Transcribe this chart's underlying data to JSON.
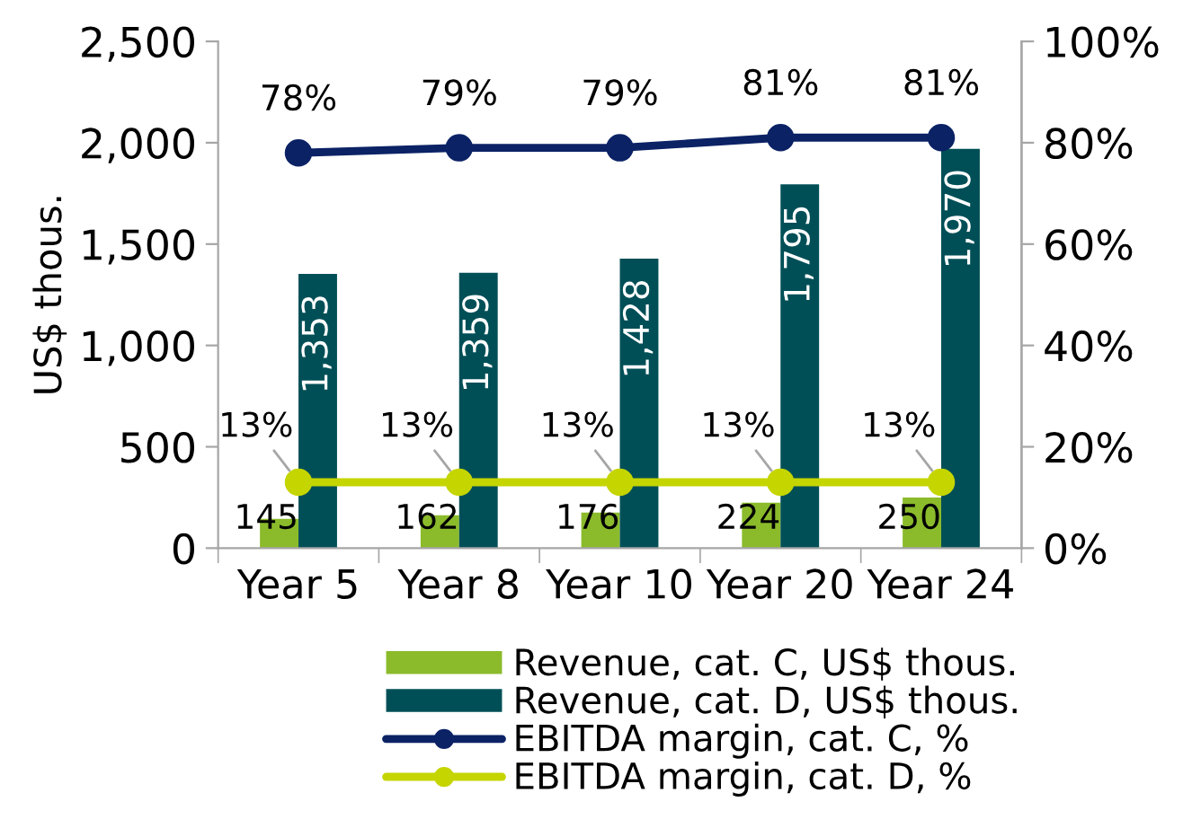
{
  "chart_data": {
    "type": "bar",
    "categories": [
      "Year 5",
      "Year 8",
      "Year 10",
      "Year 20",
      "Year 24"
    ],
    "ylabel": "US$ thous.",
    "series": [
      {
        "name": "Revenue, cat. C, US$ thous.",
        "color": "#8bbb2b",
        "values": [
          145,
          162,
          176,
          224,
          250
        ],
        "value_labels": [
          "145",
          "162",
          "176",
          "224",
          "250"
        ]
      },
      {
        "name": "Revenue, cat. D, US$ thous.",
        "color": "#004f57",
        "values": [
          1353,
          1359,
          1428,
          1795,
          1970
        ],
        "value_labels": [
          "1,353",
          "1,359",
          "1,428",
          "1,795",
          "1,970"
        ]
      },
      {
        "name": "EBITDA margin, cat. C, %",
        "type": "line",
        "axis": "y2",
        "color": "#0b2265",
        "values": [
          78,
          79,
          79,
          81,
          81
        ],
        "value_labels": [
          "78%",
          "79%",
          "79%",
          "81%",
          "81%"
        ]
      },
      {
        "name": "EBITDA margin, cat. D, %",
        "type": "line",
        "axis": "y2",
        "color": "#c5d500",
        "values": [
          13,
          13,
          13,
          13,
          13
        ],
        "value_labels": [
          "13%",
          "13%",
          "13%",
          "13%",
          "13%"
        ]
      }
    ],
    "ylim": [
      0,
      2500
    ],
    "yticks": [
      0,
      500,
      {
        "value": 1000,
        "label": "1,000"
      },
      {
        "value": 1500,
        "label": "1,500"
      },
      {
        "value": 2000,
        "label": "2,000"
      },
      {
        "value": 2500,
        "label": "2,500"
      }
    ],
    "y2lim": [
      0,
      100
    ],
    "y2ticks": [
      {
        "value": 0,
        "label": "0%"
      },
      {
        "value": 20,
        "label": "20%"
      },
      {
        "value": 40,
        "label": "40%"
      },
      {
        "value": 60,
        "label": "60%"
      },
      {
        "value": 80,
        "label": "80%"
      },
      {
        "value": 100,
        "label": "100%"
      }
    ],
    "marker": "circle",
    "line_style": "solid",
    "legend": "bottom",
    "grid": false
  }
}
